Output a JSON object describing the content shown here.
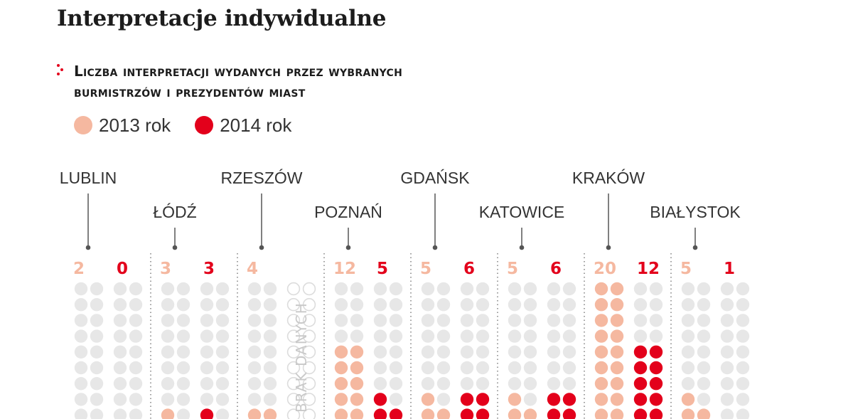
{
  "header": {
    "title": "Interpretacje indywidualne",
    "subtitle_line1": "Liczba interpretacji wydanych przez wybranych",
    "subtitle_line2": "burmistrzów i prezydentów miast"
  },
  "colors": {
    "year2013": "#f5b8a0",
    "year2014": "#e3001b",
    "empty": "#e7e7e7",
    "text": "#1c1c1c"
  },
  "chart_data": {
    "type": "dot-matrix",
    "title": "Liczba interpretacji wydanych przez wybranych burmistrzów i prezydentów miast",
    "legend": [
      "2013 rok",
      "2014 rok"
    ],
    "series_names": [
      "2013 rok",
      "2014 rok"
    ],
    "categories": [
      "LUBLIN",
      "ŁÓDŹ",
      "RZESZÓW",
      "POZNAŃ",
      "GDAŃSK",
      "KATOWICE",
      "KRAKÓW",
      "BIAŁYSTOK"
    ],
    "series": [
      {
        "name": "2013 rok",
        "values": [
          2,
          3,
          4,
          12,
          5,
          5,
          20,
          5
        ]
      },
      {
        "name": "2014 rok",
        "values": [
          0,
          3,
          null,
          5,
          6,
          6,
          12,
          1
        ]
      }
    ],
    "missing_data_label": "BRAK DANYCH"
  }
}
